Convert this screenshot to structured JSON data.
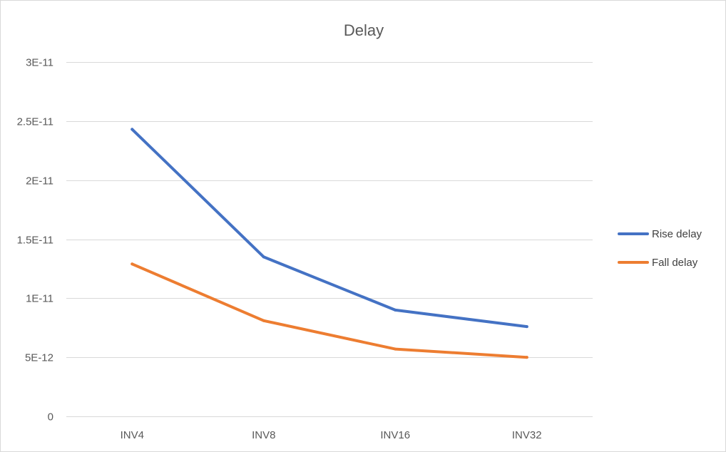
{
  "chart_data": {
    "type": "line",
    "title": "Delay",
    "categories": [
      "INV4",
      "INV8",
      "INV16",
      "INV32"
    ],
    "ylim": [
      0,
      3e-11
    ],
    "y_ticks": [
      0,
      5e-12,
      1e-11,
      1.5e-11,
      2e-11,
      2.5e-11,
      3e-11
    ],
    "y_tick_labels": [
      "0",
      "5E-12",
      "1E-11",
      "1.5E-11",
      "2E-11",
      "2.5E-11",
      "3E-11"
    ],
    "grid": true,
    "legend_position": "right",
    "series": [
      {
        "name": "Rise delay",
        "color": "#4472c4",
        "values": [
          2.43e-11,
          1.35e-11,
          9e-12,
          7.6e-12
        ]
      },
      {
        "name": "Fall delay",
        "color": "#ed7d31",
        "values": [
          1.29e-11,
          8.1e-12,
          5.7e-12,
          5e-12
        ]
      }
    ]
  }
}
